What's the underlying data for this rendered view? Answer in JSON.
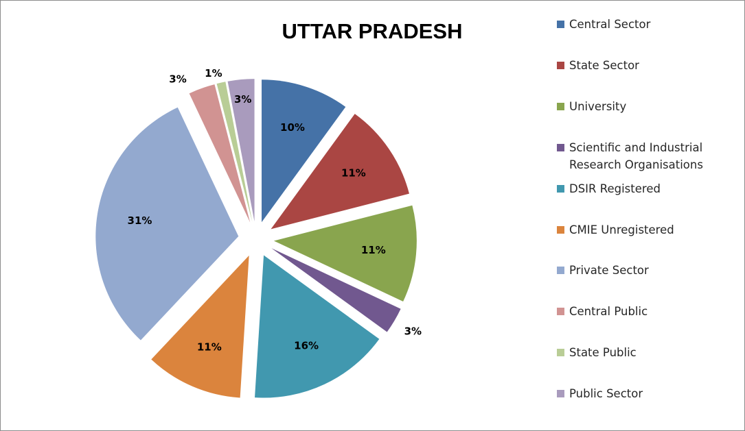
{
  "chart_data": {
    "type": "pie",
    "title": "UTTAR PRADESH",
    "legend_position": "right",
    "exploded": true,
    "slices": [
      {
        "label": "Central Sector",
        "value": 10,
        "display": "10%",
        "color": "#4572A7"
      },
      {
        "label": "State Sector",
        "value": 11,
        "display": "11%",
        "color": "#AA4643"
      },
      {
        "label": "University",
        "value": 11,
        "display": "11%",
        "color": "#89A54E"
      },
      {
        "label": "Scientific and Industrial Research Organisations",
        "value": 3,
        "display": "3%",
        "color": "#71588F"
      },
      {
        "label": "DSIR Registered",
        "value": 16,
        "display": "16%",
        "color": "#4198AF"
      },
      {
        "label": "CMIE Unregistered",
        "value": 11,
        "display": "11%",
        "color": "#DB843D"
      },
      {
        "label": "Private Sector",
        "value": 31,
        "display": "31%",
        "color": "#93A9CF"
      },
      {
        "label": "Central Public",
        "value": 3,
        "display": "3%",
        "color": "#D19392"
      },
      {
        "label": "State Public",
        "value": 1,
        "display": "1%",
        "color": "#B9CD96"
      },
      {
        "label": "Public Sector",
        "value": 3,
        "display": "3%",
        "color": "#A99BBD"
      }
    ]
  }
}
